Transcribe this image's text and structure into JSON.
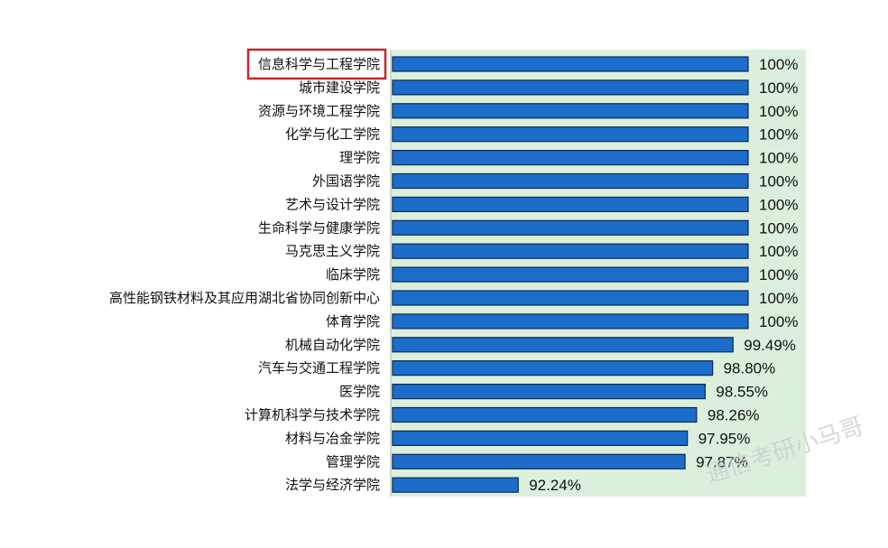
{
  "chart_data": {
    "type": "bar",
    "orientation": "horizontal",
    "categories": [
      "信息科学与工程学院",
      "城市建设学院",
      "资源与环境工程学院",
      "化学与化工学院",
      "理学院",
      "外国语学院",
      "艺术与设计学院",
      "生命科学与健康学院",
      "马克思主义学院",
      "临床学院",
      "高性能钢铁材料及其应用湖北省协同创新中心",
      "体育学院",
      "机械自动化学院",
      "汽车与交通工程学院",
      "医学院",
      "计算机科学与技术学院",
      "材料与冶金学院",
      "管理学院",
      "法学与经济学院"
    ],
    "values": [
      100,
      100,
      100,
      100,
      100,
      100,
      100,
      100,
      100,
      100,
      100,
      100,
      99.49,
      98.8,
      98.55,
      98.26,
      97.95,
      97.87,
      92.24
    ],
    "value_labels": [
      "100%",
      "100%",
      "100%",
      "100%",
      "100%",
      "100%",
      "100%",
      "100%",
      "100%",
      "100%",
      "100%",
      "100%",
      "99.49%",
      "98.80%",
      "98.55%",
      "98.26%",
      "97.95%",
      "97.87%",
      "92.24%"
    ],
    "highlighted_category": "信息科学与工程学院",
    "xlim": [
      88,
      100
    ],
    "title": "",
    "xlabel": "",
    "ylabel": "",
    "grid": false,
    "legend": "none",
    "colors": {
      "bar_fill": "#1c6dc9",
      "bar_stroke": "#0b2a55",
      "plot_background": "#dcefdc",
      "highlight_box": "#c0282c",
      "text": "#111111"
    }
  },
  "watermark": "通信考研小马哥"
}
